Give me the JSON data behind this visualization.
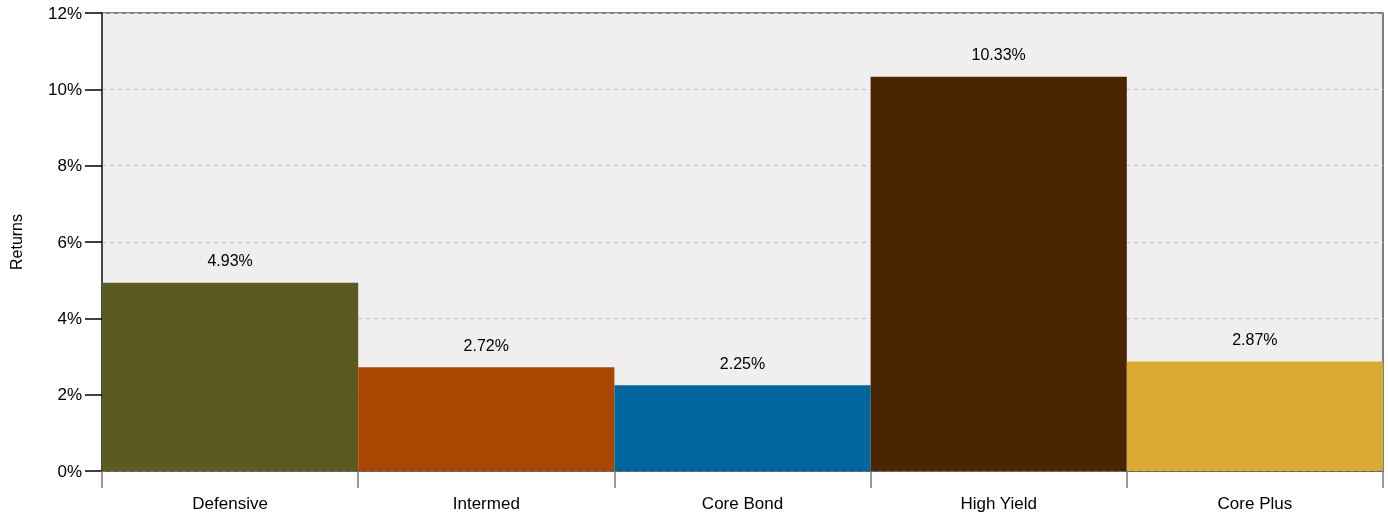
{
  "chart_data": {
    "type": "bar",
    "ylabel": "Returns",
    "categories": [
      "Defensive",
      "Intermed",
      "Core Bond",
      "High Yield",
      "Core Plus"
    ],
    "values": [
      4.93,
      2.72,
      2.25,
      10.33,
      2.87
    ],
    "colors": [
      "#5b5b21",
      "#aa4600",
      "#00669e",
      "#4a2500",
      "#daa932"
    ],
    "value_labels": [
      "4.93%",
      "2.72%",
      "2.25%",
      "10.33%",
      "2.87%"
    ],
    "ylim": [
      0,
      12
    ],
    "yticks": [
      {
        "value": 0,
        "label": "0%"
      },
      {
        "value": 2,
        "label": "2%"
      },
      {
        "value": 4,
        "label": "4%"
      },
      {
        "value": 6,
        "label": "6%"
      },
      {
        "value": 8,
        "label": "8%"
      },
      {
        "value": 10,
        "label": "10%"
      },
      {
        "value": 12,
        "label": "12%"
      }
    ],
    "grid": "y"
  }
}
